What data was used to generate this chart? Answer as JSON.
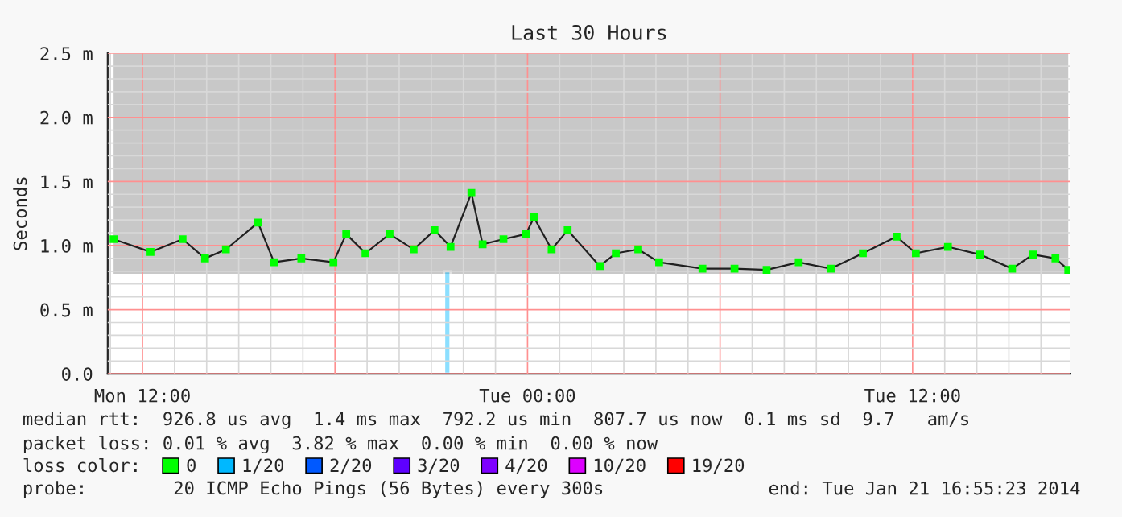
{
  "chart_data": {
    "type": "line",
    "title": "Last 30 Hours",
    "ylabel": "Seconds",
    "legend_title": "loss color:",
    "xlim": [
      "2014-01-20T10:55",
      "2014-01-21T16:55"
    ],
    "xticks": [
      {
        "value": "2014-01-20T12:00",
        "label": "Mon 12:00"
      },
      {
        "value": "2014-01-20T18:00",
        "label": null
      },
      {
        "value": "2014-01-21T00:00",
        "label": "Tue 00:00"
      },
      {
        "value": "2014-01-21T06:00",
        "label": null
      },
      {
        "value": "2014-01-21T12:00",
        "label": "Tue 12:00"
      }
    ],
    "ylim": [
      0,
      2.5
    ],
    "yticks": [
      {
        "value": 0,
        "label": "0.0"
      },
      {
        "value": 0.5,
        "label": "0.5 m"
      },
      {
        "value": 1.0,
        "label": "1.0 m"
      },
      {
        "value": 1.5,
        "label": "1.5 m"
      },
      {
        "value": 2.0,
        "label": "2.0 m"
      },
      {
        "value": 2.5,
        "label": "2.5 m"
      }
    ],
    "grid": true,
    "legend": "bottom",
    "marker": "square",
    "line_style": "solid",
    "series": [
      {
        "name": "0",
        "color": "#00ff00",
        "x": [
          "2014-01-20T11:06",
          "2014-01-20T12:15",
          "2014-01-20T13:15",
          "2014-01-20T13:57",
          "2014-01-20T14:36",
          "2014-01-20T15:36",
          "2014-01-20T16:06",
          "2014-01-20T16:57",
          "2014-01-20T17:57",
          "2014-01-20T18:21",
          "2014-01-20T18:57",
          "2014-01-20T19:42",
          "2014-01-20T20:27",
          "2014-01-20T21:06",
          "2014-01-20T21:36",
          "2014-01-20T22:15",
          "2014-01-20T22:36",
          "2014-01-20T23:15",
          "2014-01-20T23:57",
          "2014-01-21T00:12",
          "2014-01-21T00:45",
          "2014-01-21T01:15",
          "2014-01-21T02:15",
          "2014-01-21T02:45",
          "2014-01-21T03:27",
          "2014-01-21T04:06",
          "2014-01-21T05:27",
          "2014-01-21T06:27",
          "2014-01-21T07:27",
          "2014-01-21T08:27",
          "2014-01-21T09:27",
          "2014-01-21T10:27",
          "2014-01-21T11:30",
          "2014-01-21T12:06",
          "2014-01-21T13:06",
          "2014-01-21T14:06",
          "2014-01-21T15:06",
          "2014-01-21T15:45",
          "2014-01-21T16:27",
          "2014-01-21T16:51"
        ],
        "values": [
          1.05,
          0.95,
          1.05,
          0.9,
          0.97,
          1.18,
          0.87,
          0.9,
          0.87,
          1.09,
          0.94,
          1.09,
          0.97,
          1.12,
          0.99,
          1.41,
          1.01,
          1.05,
          1.09,
          1.22,
          0.97,
          1.12,
          0.84,
          0.94,
          0.97,
          0.87,
          0.82,
          0.82,
          0.81,
          0.87,
          0.82,
          0.94,
          1.07,
          0.94,
          0.99,
          0.93,
          0.82,
          0.93,
          0.9,
          0.81
        ],
        "lower": [
          0.78,
          0.78,
          0.78,
          0.78,
          0.78,
          0.78,
          0.78,
          0.78,
          0.78,
          0.78,
          0.78,
          0.78,
          0.78,
          0.78,
          0.78,
          0.78,
          0.78,
          0.78,
          0.78,
          0.78,
          0.78,
          0.78,
          0.78,
          0.78,
          0.78,
          0.78,
          0.78,
          0.78,
          0.78,
          0.78,
          0.78,
          0.78,
          0.78,
          0.78,
          0.78,
          0.78,
          0.78,
          0.78,
          0.78,
          0.78
        ],
        "upper": [
          2.5,
          2.5,
          2.5,
          2.5,
          2.5,
          2.5,
          2.5,
          2.5,
          2.5,
          2.5,
          2.5,
          2.5,
          2.5,
          2.5,
          2.5,
          2.5,
          2.5,
          2.5,
          2.5,
          2.5,
          2.5,
          2.5,
          2.5,
          2.5,
          2.5,
          2.5,
          2.5,
          2.5,
          2.5,
          2.5,
          2.5,
          2.5,
          2.5,
          2.5,
          2.5,
          2.5,
          2.5,
          2.5,
          2.5,
          2.5
        ]
      },
      {
        "name": "1/20",
        "color": "#00b8ff",
        "type": "bar",
        "x": [
          "2014-01-20T21:30"
        ],
        "values": [
          0.8
        ]
      },
      {
        "name": "2/20",
        "color": "#0059ff",
        "type": "bar"
      },
      {
        "name": "3/20",
        "color": "#5e00ff",
        "type": "bar"
      },
      {
        "name": "4/20",
        "color": "#7e00ff",
        "type": "bar"
      },
      {
        "name": "10/20",
        "color": "#dd00ff",
        "type": "bar"
      },
      {
        "name": "19/20",
        "color": "#ff0000",
        "type": "bar"
      }
    ],
    "annotations": [
      "median rtt:  926.8 us avg  1.4 ms max  792.2 us min  807.7 us now  0.1 ms sd  9.7   am/s",
      "packet loss: 0.01 % avg  3.82 % max  0.00 % min  0.00 % now",
      "probe:        20 ICMP Echo Pings (56 Bytes) every 300s",
      "end: Tue Jan 21 16:55:23 2014"
    ]
  }
}
